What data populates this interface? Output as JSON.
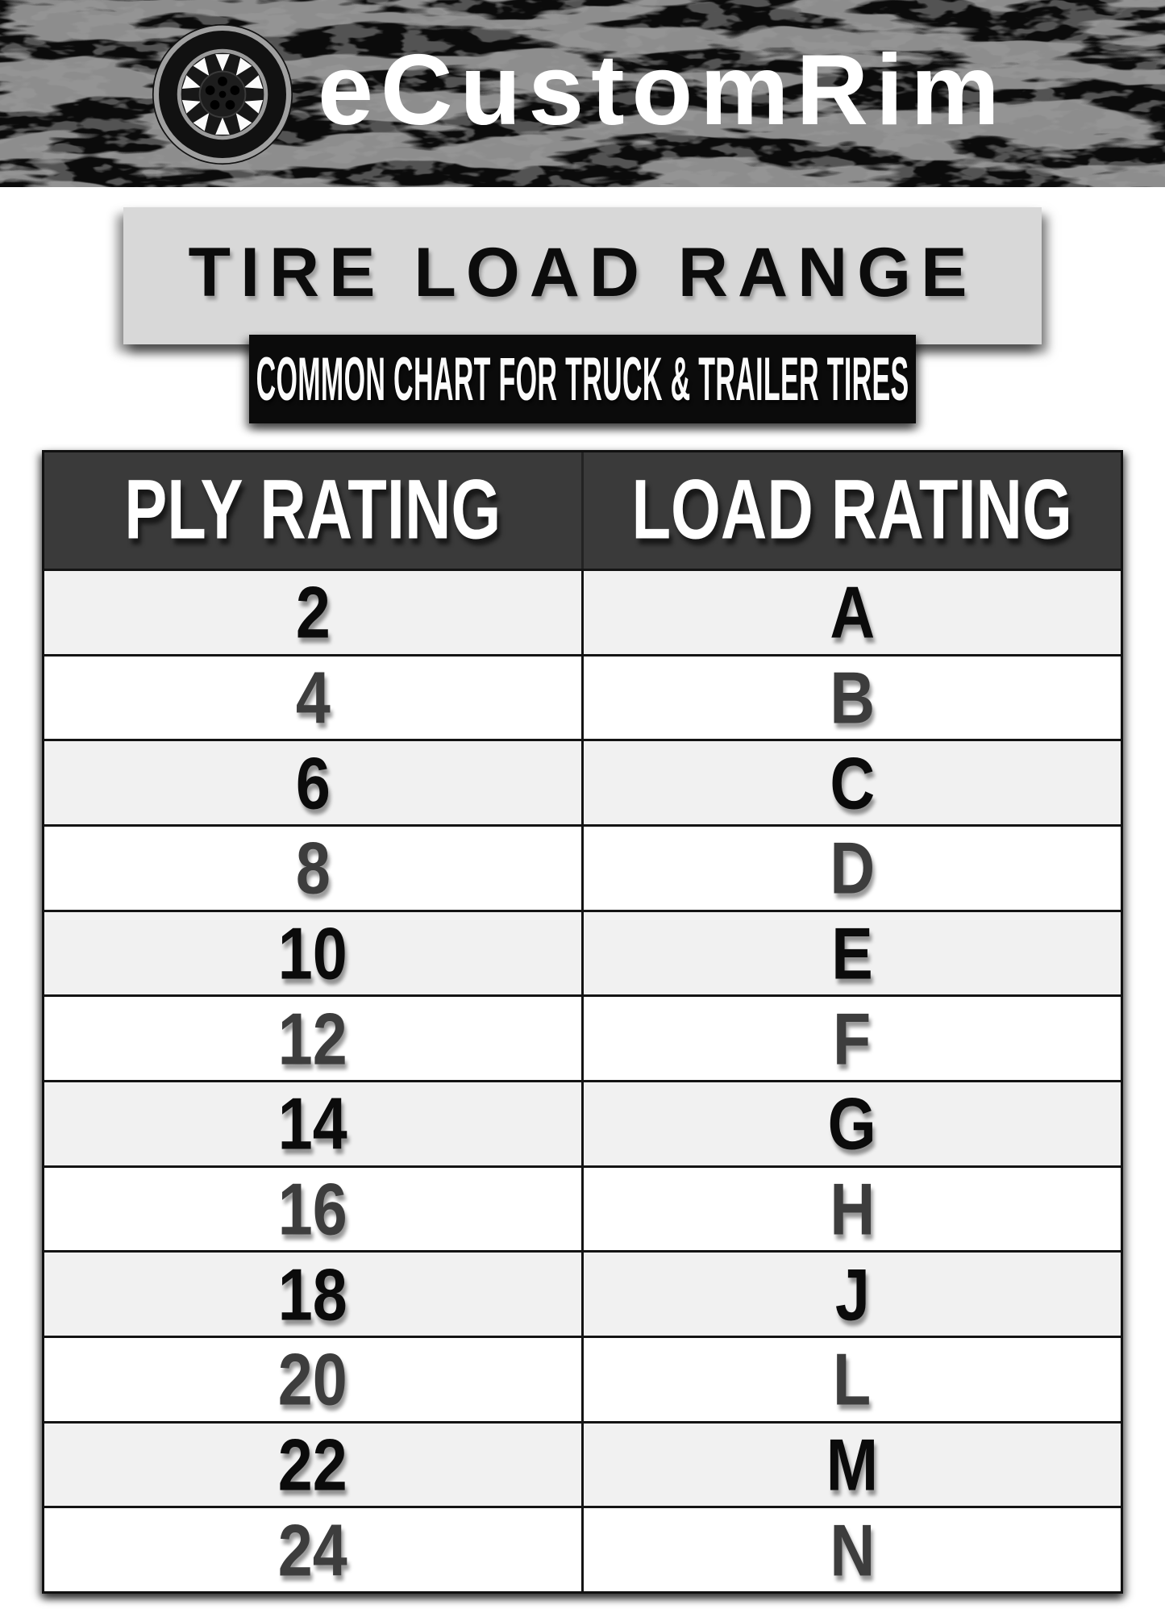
{
  "brand": {
    "name": "eCustomRim",
    "logo_icon": "tire-wheel-icon"
  },
  "banner": {
    "title": "TIRE LOAD RANGE",
    "subtitle": "COMMON CHART FOR TRUCK & TRAILER TIRES"
  },
  "chart_data": {
    "type": "table",
    "title": "TIRE LOAD RANGE",
    "subtitle": "COMMON CHART FOR TRUCK & TRAILER TIRES",
    "columns": [
      "PLY RATING",
      "LOAD RATING"
    ],
    "rows": [
      [
        "2",
        "A"
      ],
      [
        "4",
        "B"
      ],
      [
        "6",
        "C"
      ],
      [
        "8",
        "D"
      ],
      [
        "10",
        "E"
      ],
      [
        "12",
        "F"
      ],
      [
        "14",
        "G"
      ],
      [
        "16",
        "H"
      ],
      [
        "18",
        "J"
      ],
      [
        "20",
        "L"
      ],
      [
        "22",
        "M"
      ],
      [
        "24",
        "N"
      ]
    ],
    "layout_hints": {
      "header_text_color": "#ffffff",
      "alternating_rows": true,
      "grid": true
    }
  },
  "colors": {
    "band_bg": "#0b0b0b",
    "band_texture_gray": "#4d4d4d",
    "title_box_bg": "#d8d8d8",
    "subtitle_bg": "#0b0b0b",
    "header_bg": "#3a3a3a",
    "row_light": "#f1f1f1",
    "row_white": "#ffffff",
    "text_black": "#0b0b0b",
    "text_gray": "#3d3d3d"
  }
}
